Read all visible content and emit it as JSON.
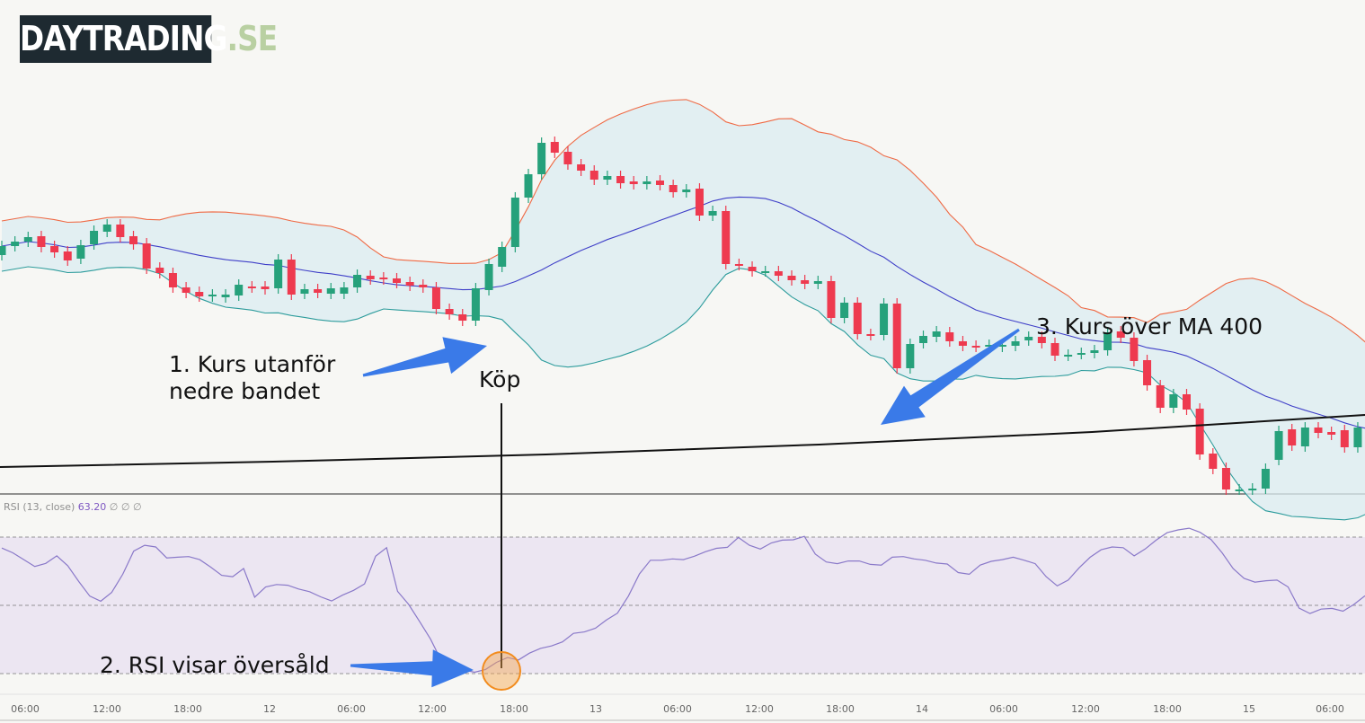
{
  "logo": {
    "main": "DAYTRADING",
    "suffix": ".SE"
  },
  "annotations": {
    "lower_band": [
      "1. Kurs utanför",
      "nedre bandet"
    ],
    "buy": "Köp",
    "rsi": "2. RSI visar översåld",
    "ma": "3. Kurs över MA 400"
  },
  "rsi_legend": {
    "name": "RSI (13, close)",
    "value": "63.20",
    "extra": "∅ ∅ ∅"
  },
  "colors": {
    "up": "#26a17b",
    "down": "#ee3a4f",
    "middle_band": "#3f3fc8",
    "upper_band": "#ef6a45",
    "lower_band": "#2d9c9c",
    "band_fill": "#dbecf1",
    "ma": "#111111",
    "rsi_line": "#8a79c9",
    "rsi_fill": "#e8e1f1",
    "arrow": "#3a7ae8",
    "marker": "#f4a34c"
  },
  "chart_data": [
    {
      "type": "candlestick",
      "title": "",
      "x_tick_labels": [
        "06:00",
        "12:00",
        "18:00",
        "12",
        "06:00",
        "12:00",
        "18:00",
        "13",
        "06:00",
        "12:00",
        "18:00",
        "14",
        "06:00",
        "12:00",
        "18:00",
        "15",
        "06:00"
      ],
      "candles": [
        {
          "o": 276,
          "c": 286
        },
        {
          "o": 286,
          "c": 291
        },
        {
          "o": 291,
          "c": 296
        },
        {
          "o": 297,
          "c": 285
        },
        {
          "o": 286,
          "c": 279
        },
        {
          "o": 280,
          "c": 270
        },
        {
          "o": 272,
          "c": 287
        },
        {
          "o": 288,
          "c": 303
        },
        {
          "o": 302,
          "c": 310
        },
        {
          "o": 310,
          "c": 296
        },
        {
          "o": 297,
          "c": 288
        },
        {
          "o": 289,
          "c": 261
        },
        {
          "o": 262,
          "c": 256
        },
        {
          "o": 256,
          "c": 240
        },
        {
          "o": 240,
          "c": 234
        },
        {
          "o": 235,
          "c": 230
        },
        {
          "o": 230,
          "c": 232
        },
        {
          "o": 229,
          "c": 232
        },
        {
          "o": 231,
          "c": 243
        },
        {
          "o": 241,
          "c": 240
        },
        {
          "o": 241,
          "c": 238
        },
        {
          "o": 239,
          "c": 271
        },
        {
          "o": 271,
          "c": 232
        },
        {
          "o": 233,
          "c": 238
        },
        {
          "o": 238,
          "c": 234
        },
        {
          "o": 233,
          "c": 239
        },
        {
          "o": 233,
          "c": 240
        },
        {
          "o": 240,
          "c": 254
        },
        {
          "o": 253,
          "c": 249
        },
        {
          "o": 251,
          "c": 249
        },
        {
          "o": 250,
          "c": 245
        },
        {
          "o": 246,
          "c": 242
        },
        {
          "o": 243,
          "c": 240
        },
        {
          "o": 240,
          "c": 216
        },
        {
          "o": 216,
          "c": 210
        },
        {
          "o": 210,
          "c": 203
        },
        {
          "o": 203,
          "c": 239
        },
        {
          "o": 237,
          "c": 266
        },
        {
          "o": 263,
          "c": 285
        },
        {
          "o": 285,
          "c": 340
        },
        {
          "o": 340,
          "c": 366
        },
        {
          "o": 366,
          "c": 401
        },
        {
          "o": 402,
          "c": 390
        },
        {
          "o": 391,
          "c": 377
        },
        {
          "o": 377,
          "c": 370
        },
        {
          "o": 370,
          "c": 360
        },
        {
          "o": 360,
          "c": 364
        },
        {
          "o": 364,
          "c": 356
        },
        {
          "o": 358,
          "c": 355
        },
        {
          "o": 355,
          "c": 358
        },
        {
          "o": 359,
          "c": 354
        },
        {
          "o": 354,
          "c": 346
        },
        {
          "o": 346,
          "c": 349
        },
        {
          "o": 350,
          "c": 320
        },
        {
          "o": 320,
          "c": 325
        },
        {
          "o": 325,
          "c": 266
        },
        {
          "o": 266,
          "c": 265
        },
        {
          "o": 263,
          "c": 258
        },
        {
          "o": 258,
          "c": 258
        },
        {
          "o": 258,
          "c": 253
        },
        {
          "o": 253,
          "c": 248
        },
        {
          "o": 248,
          "c": 244
        },
        {
          "o": 244,
          "c": 247
        },
        {
          "o": 247,
          "c": 206
        },
        {
          "o": 206,
          "c": 223
        },
        {
          "o": 223,
          "c": 188
        },
        {
          "o": 188,
          "c": 187
        },
        {
          "o": 187,
          "c": 222
        },
        {
          "o": 222,
          "c": 150
        },
        {
          "o": 150,
          "c": 177
        },
        {
          "o": 178,
          "c": 186
        },
        {
          "o": 185,
          "c": 191
        },
        {
          "o": 190,
          "c": 180
        },
        {
          "o": 180,
          "c": 175
        },
        {
          "o": 175,
          "c": 174
        },
        {
          "o": 174,
          "c": 176
        },
        {
          "o": 174,
          "c": 176
        },
        {
          "o": 175,
          "c": 180
        },
        {
          "o": 181,
          "c": 185
        },
        {
          "o": 185,
          "c": 178
        },
        {
          "o": 178,
          "c": 164
        },
        {
          "o": 164,
          "c": 165
        },
        {
          "o": 166,
          "c": 167
        },
        {
          "o": 167,
          "c": 170
        },
        {
          "o": 170,
          "c": 190
        },
        {
          "o": 191,
          "c": 184
        },
        {
          "o": 184,
          "c": 158
        },
        {
          "o": 159,
          "c": 131
        },
        {
          "o": 131,
          "c": 106
        },
        {
          "o": 106,
          "c": 121
        },
        {
          "o": 121,
          "c": 104
        },
        {
          "o": 105,
          "c": 54
        },
        {
          "o": 55,
          "c": 38
        },
        {
          "o": 39,
          "c": 15
        },
        {
          "o": 15,
          "c": 15
        },
        {
          "o": 15,
          "c": 16
        },
        {
          "o": 16,
          "c": 38
        },
        {
          "o": 48,
          "c": 80
        },
        {
          "o": 82,
          "c": 64
        },
        {
          "o": 63,
          "c": 84
        },
        {
          "o": 84,
          "c": 78
        },
        {
          "o": 79,
          "c": 76
        },
        {
          "o": 81,
          "c": 62
        },
        {
          "o": 62,
          "c": 84
        },
        {
          "o": 85,
          "c": 129
        },
        {
          "o": 129,
          "c": 131
        },
        {
          "o": 131,
          "c": 109
        },
        {
          "o": 111,
          "c": 128
        },
        {
          "o": 128,
          "c": 99
        }
      ],
      "ma400": [
        520,
        514,
        506,
        495,
        481,
        462
      ]
    },
    {
      "type": "line",
      "title": "",
      "name": "RSI (13, close)",
      "ylim": [
        0,
        100
      ],
      "levels": [
        70,
        50,
        30
      ],
      "values": [
        66.8,
        65.4,
        63.4,
        61.4,
        62.3,
        64.5,
        61.6,
        57.0,
        52.7,
        51.2,
        53.8,
        59.1,
        65.9,
        67.6,
        67.1,
        63.9,
        64.1,
        64.3,
        63.4,
        61.2,
        58.8,
        58.4,
        60.8,
        52.4,
        55.4,
        56.1,
        55.9,
        54.8,
        54.0,
        52.5,
        51.3,
        53.0,
        54.4,
        56.3,
        64.4,
        66.9,
        54.1,
        50.3,
        45.3,
        40.1,
        33.6,
        30.6,
        31.1,
        30.4,
        31.2,
        33.3,
        34.7,
        34.0,
        36.0,
        37.4,
        38.1,
        39.3,
        41.8,
        42.2,
        43.3,
        45.7,
        47.7,
        52.7,
        59.2,
        63.2,
        63.2,
        63.6,
        63.4,
        64.4,
        65.7,
        66.7,
        67.0,
        69.9,
        67.6,
        66.5,
        68.3,
        69.1,
        69.2,
        70.2,
        65.0,
        62.7,
        62.2,
        63.0,
        63.0,
        62.0,
        61.8,
        64.1,
        64.3,
        63.6,
        63.2,
        62.4,
        62.1,
        59.6,
        59.1,
        61.8,
        62.9,
        63.4,
        64.1,
        63.2,
        62.2,
        58.4,
        55.7,
        57.4,
        61.0,
        64.1,
        66.3,
        67.1,
        66.9,
        64.5,
        66.5,
        69.1,
        71.3,
        72.1,
        72.6,
        71.4,
        69.3,
        65.4,
        60.8,
        57.9,
        56.8,
        57.2,
        57.4,
        55.4,
        49.2,
        47.6,
        48.9,
        49.1,
        48.3,
        50.3,
        52.8
      ]
    }
  ]
}
